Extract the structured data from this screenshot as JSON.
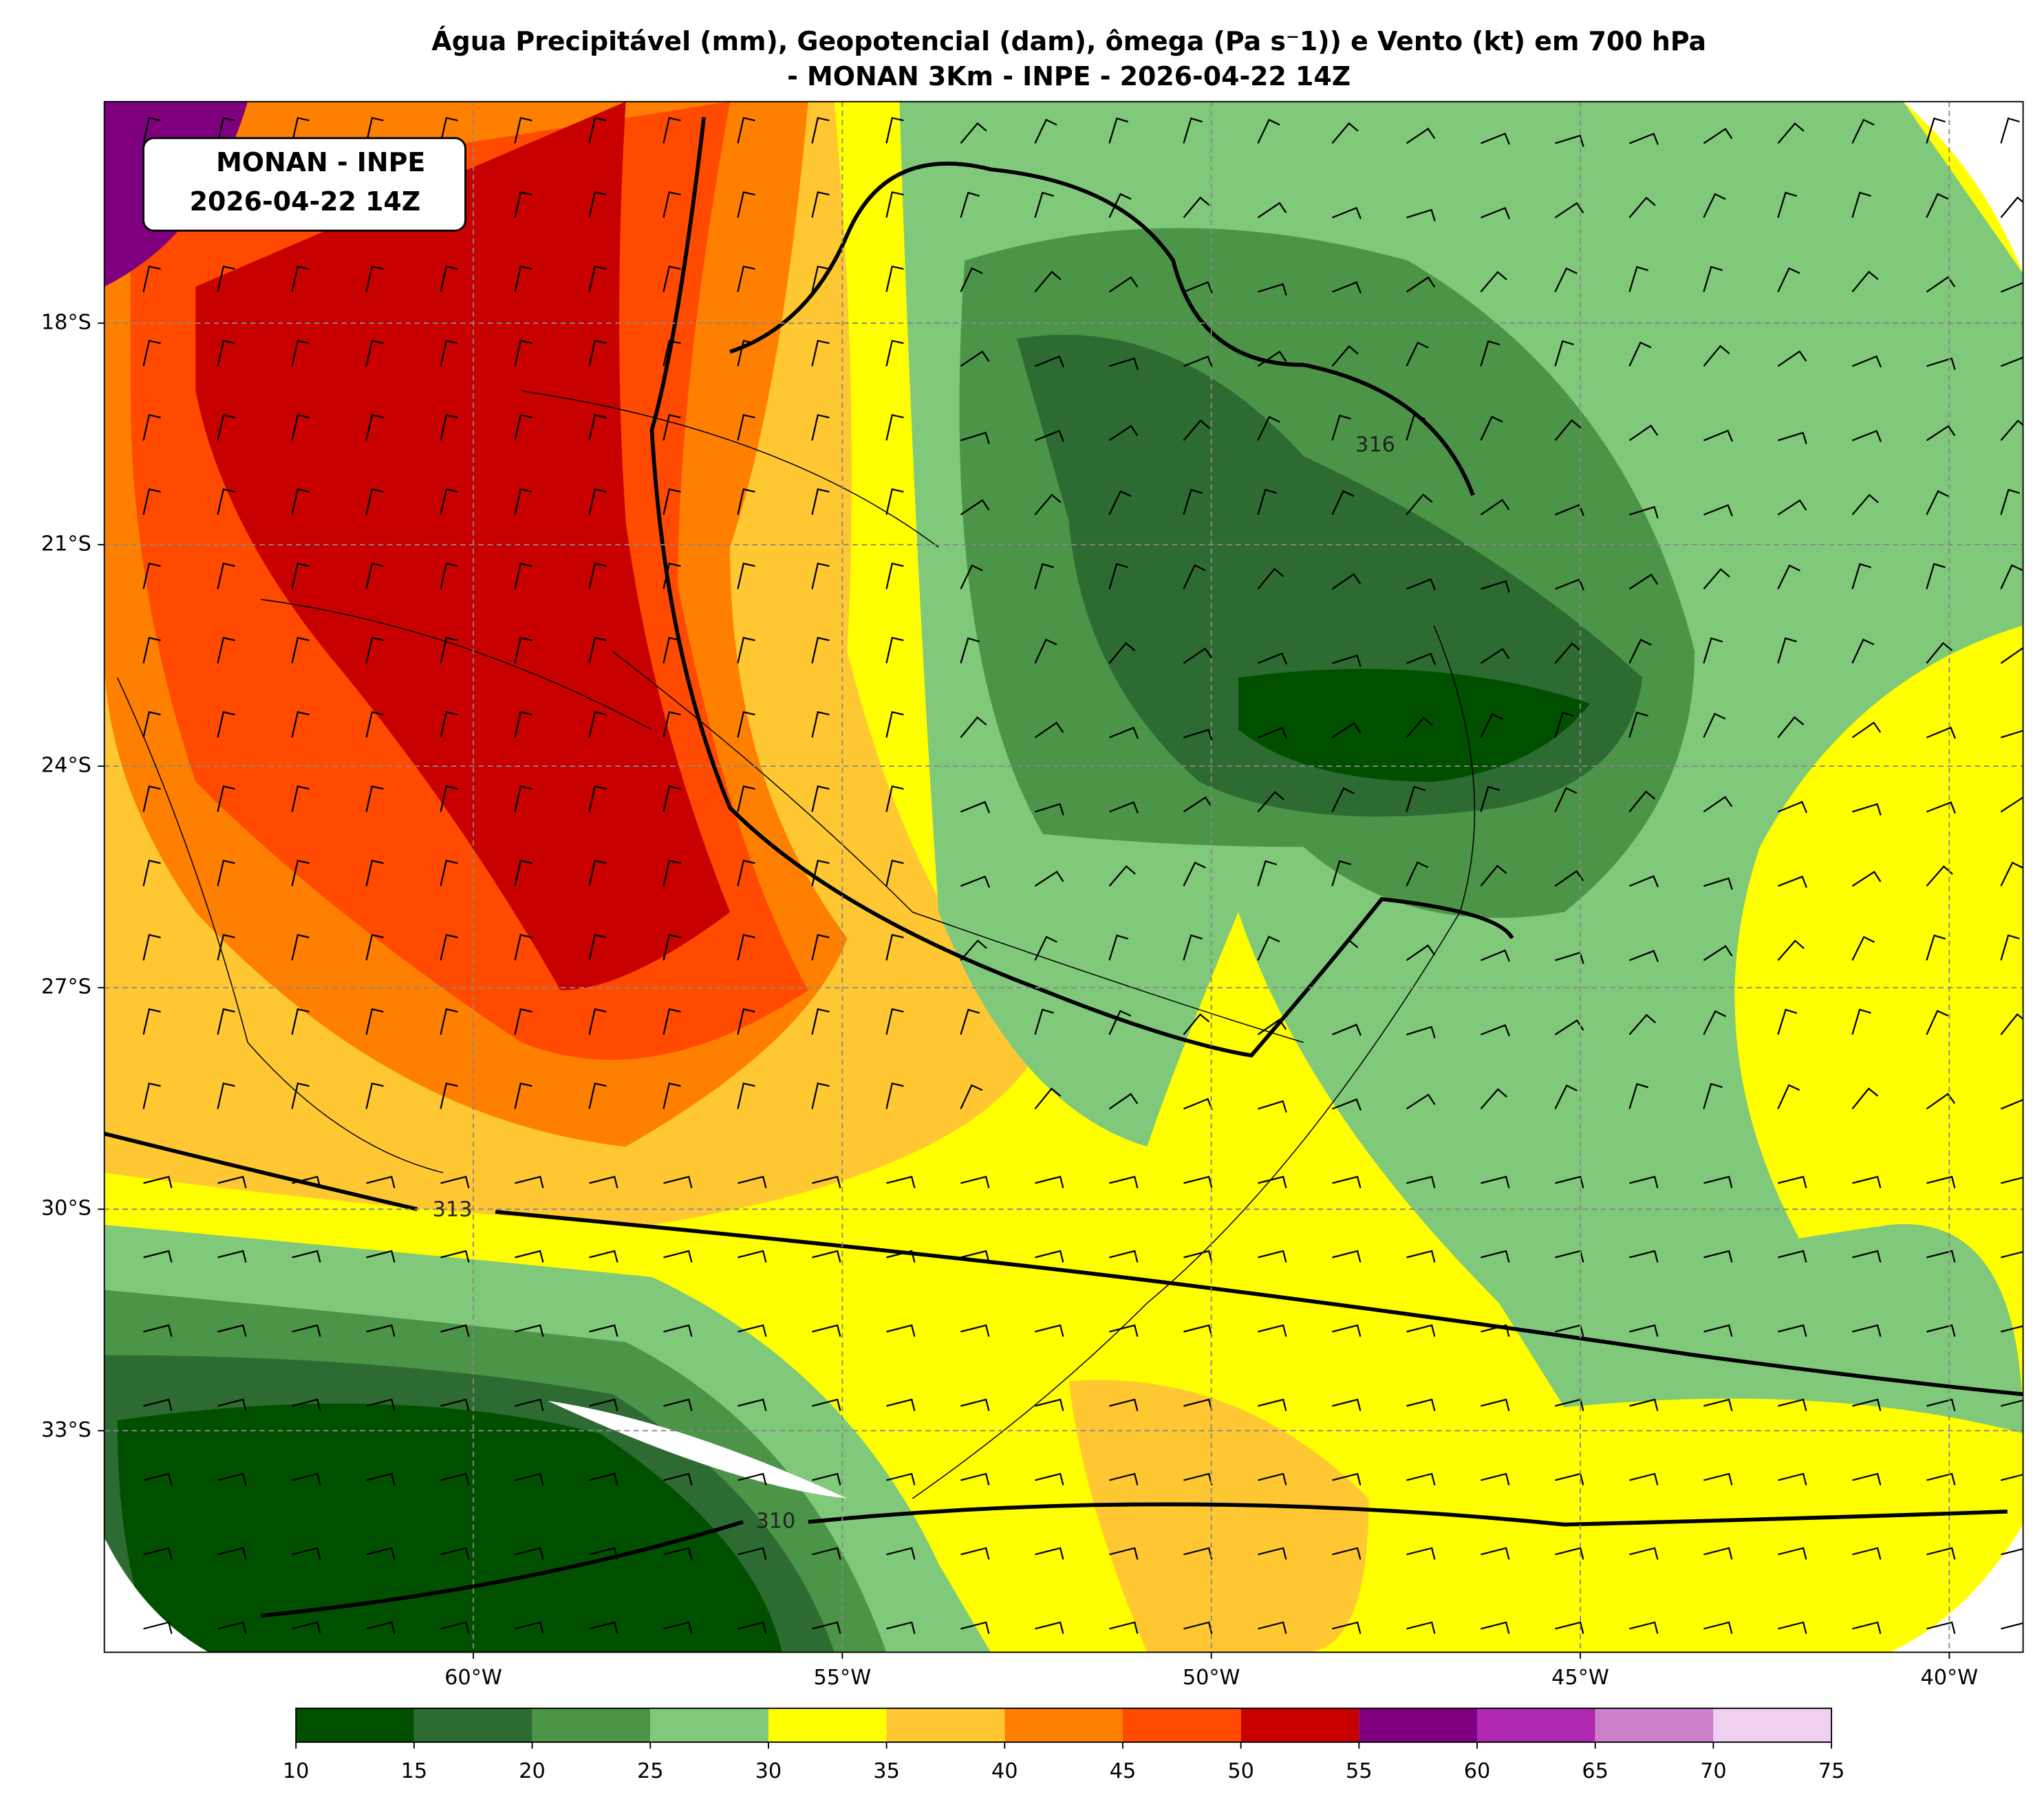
{
  "title": [
    "Água Precipitável (mm), Geopotencial (dam), ômega (Pa s⁻1)) e Vento (kt) em 700 hPa",
    "- MONAN 3Km - INPE - 2026-04-22 14Z"
  ],
  "annotation": [
    "MONAN - INPE",
    "2026-04-22 14Z"
  ],
  "map": {
    "xlim": [
      -65,
      -39
    ],
    "ylim": [
      -36,
      -15
    ],
    "xticks": [
      {
        "value": -60,
        "label": "60°W"
      },
      {
        "value": -55,
        "label": "55°W"
      },
      {
        "value": -50,
        "label": "50°W"
      },
      {
        "value": -45,
        "label": "45°W"
      },
      {
        "value": -40,
        "label": "40°W"
      }
    ],
    "yticks": [
      {
        "value": -18,
        "label": "18°S"
      },
      {
        "value": -21,
        "label": "21°S"
      },
      {
        "value": -24,
        "label": "24°S"
      },
      {
        "value": -27,
        "label": "27°S"
      },
      {
        "value": -30,
        "label": "30°S"
      },
      {
        "value": -33,
        "label": "33°S"
      }
    ],
    "grid": true
  },
  "colorbar": {
    "ticks": [
      10,
      15,
      20,
      25,
      30,
      35,
      40,
      45,
      50,
      55,
      60,
      65,
      70,
      75
    ],
    "colors": [
      "#005000",
      "#2e6b32",
      "#4c9447",
      "#80c97a",
      "#ffff00",
      "#ffc832",
      "#ff8000",
      "#ff4a00",
      "#c80000",
      "#7f007f",
      "#b028b0",
      "#cc80cc",
      "#f0d0f0"
    ]
  },
  "contour_labels": [
    "313",
    "316",
    "310"
  ]
}
